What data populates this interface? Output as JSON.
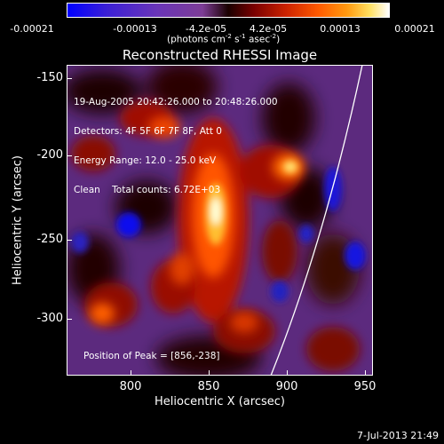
{
  "colorbar": {
    "tick_labels": [
      "-0.00021",
      "-0.00013",
      "-4.2e-05",
      "4.2e-05",
      "0.00013",
      "0.00021"
    ],
    "units_prefix": "(photons cm",
    "units_exp1": "-2",
    "units_mid": " s",
    "units_exp2": "-1",
    "units_mid2": " asec",
    "units_exp3": "-2",
    "units_suffix": ")",
    "range": [
      -0.00021,
      0.00021
    ]
  },
  "image": {
    "title": "Reconstructed RHESSI Image",
    "info_lines": [
      "19-Aug-2005 20:42:26.000 to 20:48:26.000",
      "Detectors: 4F 5F 6F 7F 8F, Att 0",
      "Energy Range: 12.0 - 25.0 keV",
      "Clean    Total counts: 6.72E+03"
    ],
    "peak_label": "Position of Peak = [856,-238]",
    "peak": [
      856,
      -238
    ]
  },
  "axes": {
    "xlabel": "Heliocentric X (arcsec)",
    "ylabel": "Heliocentric Y (arcsec)",
    "xlim": [
      760,
      955
    ],
    "ylim": [
      -335,
      -145
    ],
    "xticks": [
      "800",
      "850",
      "900",
      "950"
    ],
    "yticks": [
      "-150",
      "-200",
      "-250",
      "-300"
    ]
  },
  "footer": {
    "timestamp": "7-Jul-2013 21:49"
  }
}
